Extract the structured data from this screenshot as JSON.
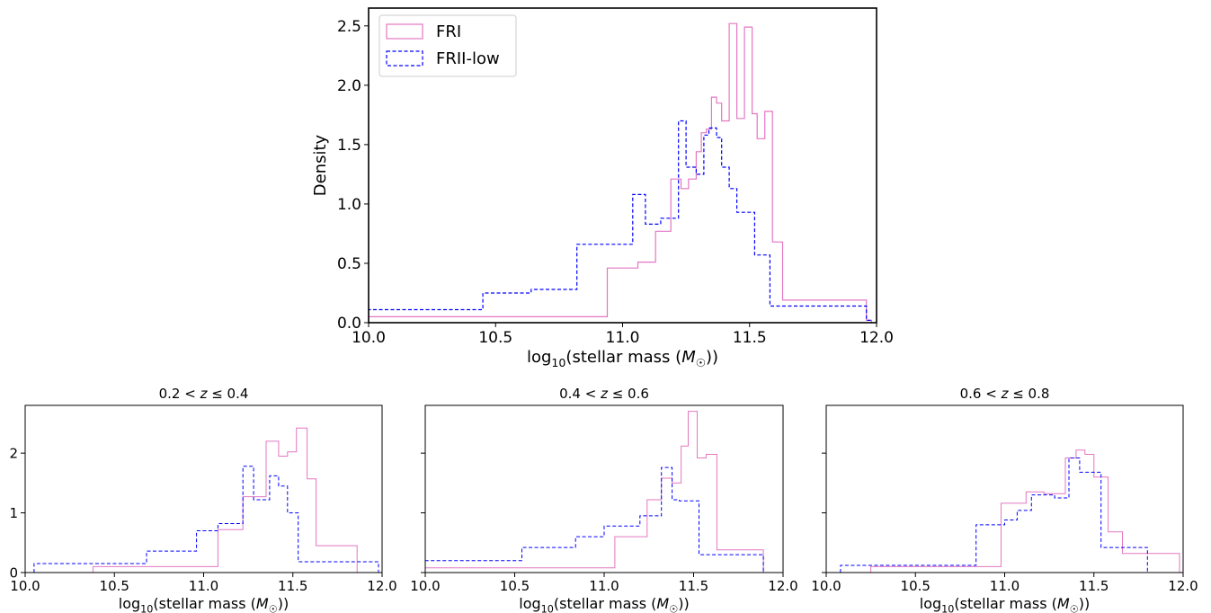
{
  "colors": {
    "fri": "#e377c2",
    "frii": "#0000ff",
    "axis": "#000000",
    "background": "#ffffff"
  },
  "chart_data": [
    {
      "type": "step",
      "title": "",
      "xlabel": "log10(stellar mass (M☉))",
      "ylabel": "Density",
      "xlim": [
        10.0,
        12.0
      ],
      "ylim": [
        0,
        2.65
      ],
      "xticks": [
        "10.0",
        "10.5",
        "11.0",
        "11.5",
        "12.0"
      ],
      "yticks": [
        "0.0",
        "0.5",
        "1.0",
        "1.5",
        "2.0",
        "2.5"
      ],
      "legend_position": "top-left",
      "series": [
        {
          "name": "FRI",
          "style": "solid",
          "edges": [
            10.0,
            10.94,
            11.06,
            11.13,
            11.19,
            11.23,
            11.26,
            11.29,
            11.31,
            11.33,
            11.35,
            11.37,
            11.39,
            11.42,
            11.45,
            11.48,
            11.51,
            11.53,
            11.56,
            11.59,
            11.63,
            11.71,
            11.96,
            11.98
          ],
          "values": [
            0.05,
            0.46,
            0.51,
            0.77,
            1.21,
            1.13,
            1.21,
            1.44,
            1.6,
            1.63,
            1.9,
            1.85,
            1.7,
            2.52,
            1.72,
            2.49,
            1.76,
            1.55,
            1.78,
            0.68,
            0.19,
            0.19,
            0.02
          ]
        },
        {
          "name": "FRII-low",
          "style": "dashed",
          "edges": [
            10.0,
            10.45,
            10.64,
            10.82,
            11.04,
            11.09,
            11.15,
            11.22,
            11.25,
            11.29,
            11.32,
            11.34,
            11.37,
            11.39,
            11.42,
            11.45,
            11.52,
            11.58,
            11.65,
            11.96,
            11.98
          ],
          "values": [
            0.11,
            0.25,
            0.28,
            0.66,
            1.08,
            0.83,
            0.88,
            1.7,
            1.31,
            1.25,
            1.58,
            1.64,
            1.56,
            1.31,
            1.13,
            0.93,
            0.57,
            0.14,
            0.14,
            0.02
          ]
        }
      ]
    },
    {
      "type": "step",
      "title": "0.2 < z ≤ 0.4",
      "xlabel": "log10(stellar mass (M☉))",
      "ylabel": "",
      "xlim": [
        10.0,
        12.0
      ],
      "ylim": [
        0,
        2.8
      ],
      "xticks": [
        "10.0",
        "10.5",
        "11.0",
        "11.5",
        "12.0"
      ],
      "yticks": [
        "0",
        "1",
        "2"
      ],
      "series": [
        {
          "name": "FRI",
          "style": "solid",
          "edges": [
            10.38,
            11.08,
            11.22,
            11.35,
            11.42,
            11.47,
            11.52,
            11.58,
            11.63,
            11.86
          ],
          "values": [
            0.1,
            0.72,
            1.27,
            2.2,
            1.95,
            2.02,
            2.42,
            1.57,
            0.45
          ]
        },
        {
          "name": "FRII-low",
          "style": "dashed",
          "edges": [
            10.05,
            10.68,
            10.96,
            11.08,
            11.22,
            11.28,
            11.37,
            11.42,
            11.47,
            11.53,
            11.98
          ],
          "values": [
            0.15,
            0.36,
            0.7,
            0.82,
            1.78,
            1.22,
            1.62,
            1.45,
            1.0,
            0.18
          ]
        }
      ]
    },
    {
      "type": "step",
      "title": "0.4 < z ≤ 0.6",
      "xlabel": "log10(stellar mass (M☉))",
      "ylabel": "",
      "xlim": [
        10.0,
        12.0
      ],
      "ylim": [
        0,
        2.8
      ],
      "xticks": [
        "10.0",
        "10.5",
        "11.0",
        "11.5",
        "12.0"
      ],
      "yticks": [
        "0",
        "1",
        "2"
      ],
      "series": [
        {
          "name": "FRI",
          "style": "solid",
          "edges": [
            10.0,
            11.06,
            11.24,
            11.32,
            11.38,
            11.43,
            11.47,
            11.52,
            11.57,
            11.63,
            11.89
          ],
          "values": [
            0.08,
            0.6,
            1.22,
            1.58,
            1.5,
            2.12,
            2.7,
            1.92,
            1.98,
            0.38
          ]
        },
        {
          "name": "FRII-low",
          "style": "dashed",
          "edges": [
            10.0,
            10.54,
            10.84,
            11.0,
            11.2,
            11.32,
            11.38,
            11.42,
            11.53,
            11.89
          ],
          "values": [
            0.2,
            0.42,
            0.6,
            0.78,
            0.95,
            1.76,
            1.22,
            1.2,
            0.3
          ]
        }
      ]
    },
    {
      "type": "step",
      "title": "0.6 < z ≤ 0.8",
      "xlabel": "log10(stellar mass (M☉))",
      "ylabel": "",
      "xlim": [
        10.0,
        12.0
      ],
      "ylim": [
        0,
        2.8
      ],
      "xticks": [
        "10.0",
        "10.5",
        "11.0",
        "11.5",
        "12.0"
      ],
      "yticks": [
        "0",
        "1",
        "2"
      ],
      "series": [
        {
          "name": "FRI",
          "style": "solid",
          "edges": [
            10.25,
            10.98,
            11.12,
            11.22,
            11.34,
            11.4,
            11.45,
            11.5,
            11.58,
            11.66,
            11.98
          ],
          "values": [
            0.1,
            1.16,
            1.35,
            1.32,
            1.92,
            2.05,
            1.98,
            1.6,
            0.68,
            0.32
          ]
        },
        {
          "name": "FRII-low",
          "style": "dashed",
          "edges": [
            10.08,
            10.84,
            11.0,
            11.07,
            11.15,
            11.28,
            11.36,
            11.42,
            11.54,
            11.8
          ],
          "values": [
            0.12,
            0.8,
            0.88,
            1.04,
            1.3,
            1.25,
            1.92,
            1.68,
            0.42
          ]
        }
      ]
    }
  ]
}
